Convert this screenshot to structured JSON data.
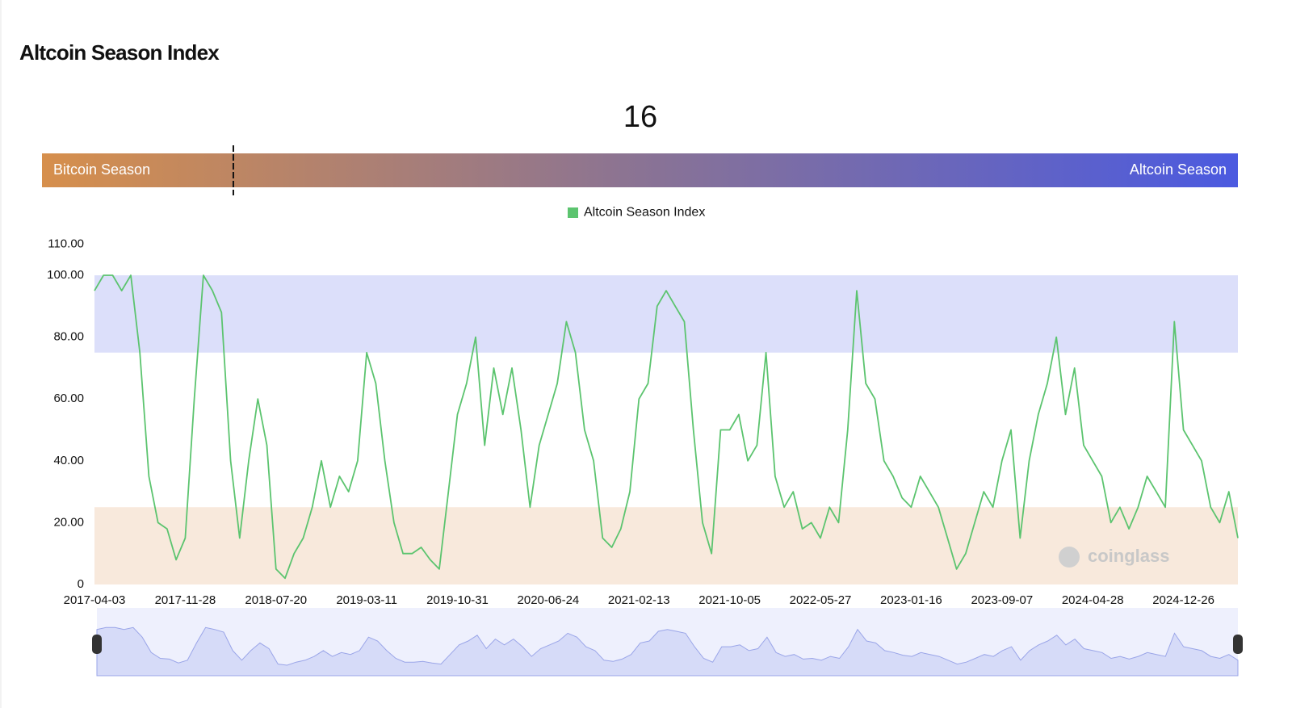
{
  "title": "Altcoin Season Index",
  "gauge": {
    "value": 16,
    "range": [
      0,
      100
    ],
    "left_label": "Bitcoin Season",
    "right_label": "Altcoin Season",
    "colors": [
      "#d68f4c",
      "#8a7394",
      "#4b5ae0"
    ]
  },
  "watermark": "coinglass",
  "chart_data": {
    "type": "line",
    "categories": [
      "2017-04-03",
      null,
      null,
      null,
      null,
      null,
      null,
      null,
      null,
      null,
      "2017-11-28",
      null,
      null,
      null,
      null,
      null,
      null,
      null,
      null,
      null,
      "2018-07-20",
      null,
      null,
      null,
      null,
      null,
      null,
      null,
      null,
      null,
      "2019-03-11",
      null,
      null,
      null,
      null,
      null,
      null,
      null,
      null,
      null,
      "2019-10-31",
      null,
      null,
      null,
      null,
      null,
      null,
      null,
      null,
      null,
      "2020-06-24",
      null,
      null,
      null,
      null,
      null,
      null,
      null,
      null,
      null,
      "2021-02-13",
      null,
      null,
      null,
      null,
      null,
      null,
      null,
      null,
      null,
      "2021-10-05",
      null,
      null,
      null,
      null,
      null,
      null,
      null,
      null,
      null,
      "2022-05-27",
      null,
      null,
      null,
      null,
      null,
      null,
      null,
      null,
      null,
      "2023-01-16",
      null,
      null,
      null,
      null,
      null,
      null,
      null,
      null,
      null,
      "2023-09-07",
      null,
      null,
      null,
      null,
      null,
      null,
      null,
      null,
      null,
      "2024-04-28",
      null,
      null,
      null,
      null,
      null,
      null,
      null,
      null,
      null,
      "2024-12-26",
      null,
      null,
      null,
      null,
      null,
      null
    ],
    "series": [
      {
        "name": "Altcoin Season Index",
        "color": "#5cc46f",
        "values": [
          95,
          100,
          100,
          95,
          100,
          75,
          35,
          20,
          18,
          8,
          15,
          60,
          100,
          95,
          88,
          40,
          15,
          40,
          60,
          45,
          5,
          2,
          10,
          15,
          25,
          40,
          25,
          35,
          30,
          40,
          75,
          65,
          40,
          20,
          10,
          10,
          12,
          8,
          5,
          30,
          55,
          65,
          80,
          45,
          70,
          55,
          70,
          50,
          25,
          45,
          55,
          65,
          85,
          75,
          50,
          40,
          15,
          12,
          18,
          30,
          60,
          65,
          90,
          95,
          90,
          85,
          50,
          20,
          10,
          50,
          50,
          55,
          40,
          45,
          75,
          35,
          25,
          30,
          18,
          20,
          15,
          25,
          20,
          50,
          95,
          65,
          60,
          40,
          35,
          28,
          25,
          35,
          30,
          25,
          15,
          5,
          10,
          20,
          30,
          25,
          40,
          50,
          15,
          40,
          55,
          65,
          80,
          55,
          70,
          45,
          40,
          35,
          20,
          25,
          18,
          25,
          35,
          30,
          25,
          85,
          50,
          45,
          40,
          25,
          20,
          30,
          15
        ]
      }
    ],
    "ylim": [
      0,
      110
    ],
    "yticks": [
      0,
      {
        "value": 20,
        "label": "20.00"
      },
      {
        "value": 40,
        "label": "40.00"
      },
      {
        "value": 60,
        "label": "60.00"
      },
      {
        "value": 80,
        "label": "80.00"
      },
      {
        "value": 100,
        "label": "100.00"
      },
      {
        "value": 110,
        "label": "110.00"
      }
    ],
    "bands": [
      {
        "from": 75,
        "to": 100,
        "color": "#dcdffa"
      },
      {
        "from": 0,
        "to": 25,
        "color": "#f8e9dc"
      }
    ],
    "legend": "top"
  }
}
